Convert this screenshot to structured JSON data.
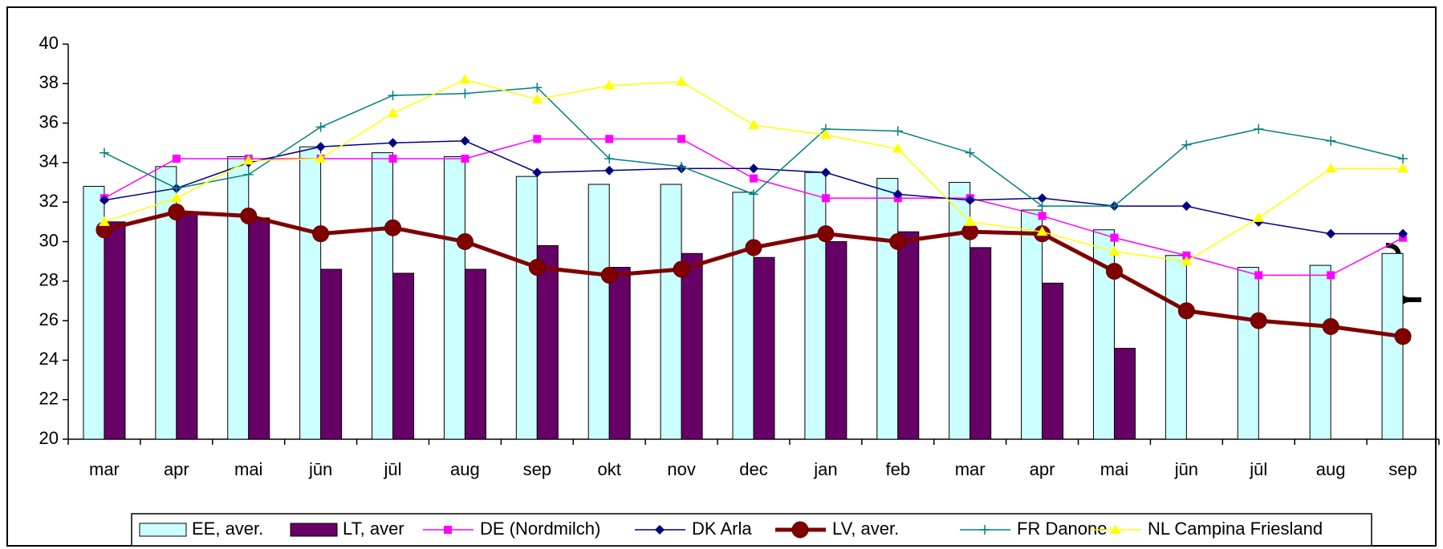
{
  "chart_data": {
    "type": "combo",
    "categories": [
      "mar",
      "apr",
      "mai",
      "jūn",
      "jūl",
      "aug",
      "sep",
      "okt",
      "nov",
      "dec",
      "jan",
      "feb",
      "mar",
      "apr",
      "mai",
      "jūn",
      "jūl",
      "aug",
      "sep"
    ],
    "ylim": [
      20,
      40
    ],
    "yticks": [
      20,
      22,
      24,
      26,
      28,
      30,
      32,
      34,
      36,
      38,
      40
    ],
    "legend": "bottom",
    "series": [
      {
        "name": "EE, aver.",
        "type": "bar",
        "color": "#ccffff",
        "values": [
          32.8,
          33.8,
          34.3,
          34.8,
          34.5,
          34.3,
          33.3,
          32.9,
          32.9,
          32.5,
          33.5,
          33.2,
          33.0,
          31.6,
          30.6,
          29.3,
          28.7,
          28.8,
          29.4
        ]
      },
      {
        "name": "LT, aver",
        "type": "bar",
        "color": "#660066",
        "values": [
          31.0,
          31.4,
          31.2,
          28.6,
          28.4,
          28.6,
          29.8,
          28.7,
          29.4,
          29.2,
          30.0,
          30.5,
          29.7,
          27.9,
          24.6,
          null,
          null,
          null,
          null
        ]
      },
      {
        "name": "DE (Nordmilch)",
        "type": "line",
        "marker": "square",
        "color": "#ff00ff",
        "values": [
          32.2,
          34.2,
          34.2,
          34.2,
          34.2,
          34.2,
          35.2,
          35.2,
          35.2,
          33.2,
          32.2,
          32.2,
          32.2,
          31.3,
          30.2,
          29.3,
          28.3,
          28.3,
          30.2
        ]
      },
      {
        "name": "DK Arla",
        "type": "line",
        "marker": "diamond",
        "color": "#000080",
        "values": [
          32.1,
          32.7,
          34.0,
          34.8,
          35.0,
          35.1,
          33.5,
          33.6,
          33.7,
          33.7,
          33.5,
          32.4,
          32.1,
          32.2,
          31.8,
          31.8,
          31.0,
          30.4,
          30.4
        ]
      },
      {
        "name": "LV, aver.",
        "type": "line",
        "marker": "circle",
        "color": "#800000",
        "values": [
          30.6,
          31.5,
          31.3,
          30.4,
          30.7,
          30.0,
          28.7,
          28.3,
          28.6,
          29.7,
          30.4,
          30.0,
          30.5,
          30.4,
          28.5,
          26.5,
          26.0,
          25.7,
          25.2
        ]
      },
      {
        "name": "FR Danone",
        "type": "line",
        "marker": "plus",
        "color": "#008080",
        "values": [
          34.5,
          32.7,
          33.4,
          35.8,
          37.4,
          37.5,
          37.8,
          34.2,
          33.8,
          32.4,
          35.7,
          35.6,
          34.5,
          31.8,
          31.8,
          34.9,
          35.7,
          35.1,
          34.2
        ]
      },
      {
        "name": "NL Campina Friesland",
        "type": "line",
        "marker": "triangle",
        "color": "#ffff00",
        "values": [
          31.0,
          32.2,
          34.1,
          34.2,
          36.5,
          38.2,
          37.2,
          37.9,
          38.1,
          35.9,
          35.4,
          34.7,
          31.0,
          30.5,
          29.5,
          29.0,
          31.2,
          33.7,
          33.7
        ]
      }
    ]
  }
}
